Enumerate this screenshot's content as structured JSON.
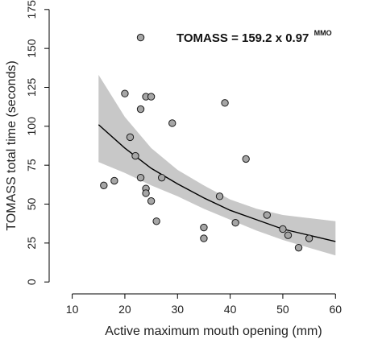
{
  "chart_data": {
    "type": "scatter",
    "xlabel": "Active maximum mouth opening (mm)",
    "ylabel": "TOMASS total time (seconds)",
    "xlim": [
      7,
      67
    ],
    "ylim": [
      -3,
      178
    ],
    "xticks": [
      10,
      20,
      30,
      40,
      50,
      60
    ],
    "yticks": [
      0,
      25,
      50,
      75,
      100,
      125,
      150,
      175
    ],
    "grid": false,
    "annotation": {
      "text": "TOMASS = 159.2 x 0.97",
      "superscript": "MMO"
    },
    "points": [
      {
        "x": 16,
        "y": 62
      },
      {
        "x": 18,
        "y": 65
      },
      {
        "x": 20,
        "y": 121
      },
      {
        "x": 21,
        "y": 93
      },
      {
        "x": 22,
        "y": 81
      },
      {
        "x": 23,
        "y": 157
      },
      {
        "x": 23,
        "y": 111
      },
      {
        "x": 23,
        "y": 67
      },
      {
        "x": 24,
        "y": 119
      },
      {
        "x": 24,
        "y": 60
      },
      {
        "x": 24,
        "y": 57
      },
      {
        "x": 25,
        "y": 119
      },
      {
        "x": 25,
        "y": 52
      },
      {
        "x": 26,
        "y": 39
      },
      {
        "x": 27,
        "y": 67
      },
      {
        "x": 29,
        "y": 102
      },
      {
        "x": 35,
        "y": 35
      },
      {
        "x": 35,
        "y": 28
      },
      {
        "x": 38,
        "y": 55
      },
      {
        "x": 39,
        "y": 115
      },
      {
        "x": 41,
        "y": 38
      },
      {
        "x": 43,
        "y": 79
      },
      {
        "x": 47,
        "y": 43
      },
      {
        "x": 50,
        "y": 34
      },
      {
        "x": 51,
        "y": 30
      },
      {
        "x": 53,
        "y": 22
      },
      {
        "x": 55,
        "y": 28
      }
    ],
    "fit": {
      "x": [
        15,
        20,
        25,
        30,
        35,
        40,
        45,
        50,
        55,
        60
      ],
      "y": [
        101,
        86,
        73,
        63,
        54,
        46,
        40,
        34,
        30,
        26
      ]
    },
    "confidence_band": {
      "x": [
        15,
        20,
        25,
        30,
        35,
        40,
        45,
        50,
        55,
        60
      ],
      "lower": [
        77,
        70,
        62,
        55,
        47,
        40,
        33,
        27,
        22,
        17
      ],
      "upper": [
        133,
        106,
        86,
        72,
        62,
        53,
        47,
        43,
        41,
        39
      ]
    },
    "colors": {
      "band": "#c8c8c8",
      "point_fill": "#a6a6a6",
      "point_stroke": "#1a1a1a",
      "line": "#000000"
    }
  }
}
